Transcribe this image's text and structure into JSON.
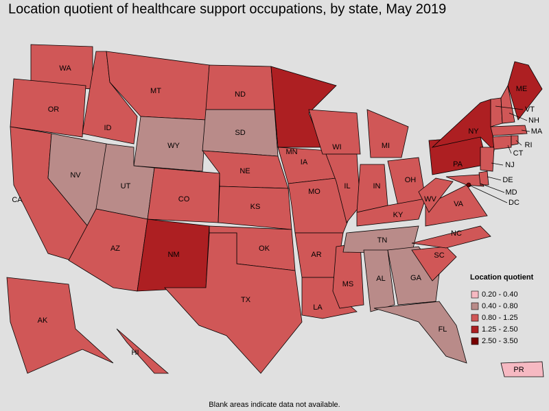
{
  "title": "Location quotient of healthcare support occupations, by state, May 2019",
  "footnote": "Blank areas indicate data not available.",
  "legend": {
    "title": "Location quotient",
    "entries": [
      {
        "label": "0.20 - 0.40",
        "color": "#f6b9c2"
      },
      {
        "label": "0.40 - 0.80",
        "color": "#b98b89"
      },
      {
        "label": "0.80 - 1.25",
        "color": "#d05757"
      },
      {
        "label": "1.25 - 2.50",
        "color": "#ad1f22"
      },
      {
        "label": "2.50 - 3.50",
        "color": "#780000"
      }
    ]
  },
  "states": [
    {
      "label": "WA",
      "color": "#d05757"
    },
    {
      "label": "OR",
      "color": "#d05757"
    },
    {
      "label": "CA",
      "color": "#d05757"
    },
    {
      "label": "NV",
      "color": "#b98b89"
    },
    {
      "label": "ID",
      "color": "#d05757"
    },
    {
      "label": "MT",
      "color": "#d05757"
    },
    {
      "label": "WY",
      "color": "#b98b89"
    },
    {
      "label": "UT",
      "color": "#b98b89"
    },
    {
      "label": "CO",
      "color": "#d05757"
    },
    {
      "label": "AZ",
      "color": "#d05757"
    },
    {
      "label": "NM",
      "color": "#ad1f22"
    },
    {
      "label": "ND",
      "color": "#d05757"
    },
    {
      "label": "SD",
      "color": "#b98b89"
    },
    {
      "label": "NE",
      "color": "#d05757"
    },
    {
      "label": "KS",
      "color": "#d05757"
    },
    {
      "label": "OK",
      "color": "#d05757"
    },
    {
      "label": "TX",
      "color": "#d05757"
    },
    {
      "label": "MN",
      "color": "#ad1f22"
    },
    {
      "label": "IA",
      "color": "#d05757"
    },
    {
      "label": "MO",
      "color": "#d05757"
    },
    {
      "label": "AR",
      "color": "#d05757"
    },
    {
      "label": "LA",
      "color": "#d05757"
    },
    {
      "label": "MS",
      "color": "#d05757"
    },
    {
      "label": "WI",
      "color": "#d05757"
    },
    {
      "label": "IL",
      "color": "#d05757"
    },
    {
      "label": "MI",
      "color": "#d05757"
    },
    {
      "label": "IN",
      "color": "#d05757"
    },
    {
      "label": "OH",
      "color": "#d05757"
    },
    {
      "label": "KY",
      "color": "#d05757"
    },
    {
      "label": "TN",
      "color": "#b98b89"
    },
    {
      "label": "AL",
      "color": "#b98b89"
    },
    {
      "label": "GA",
      "color": "#b98b89"
    },
    {
      "label": "FL",
      "color": "#b98b89"
    },
    {
      "label": "SC",
      "color": "#d05757"
    },
    {
      "label": "NC",
      "color": "#d05757"
    },
    {
      "label": "VA",
      "color": "#d05757"
    },
    {
      "label": "WV",
      "color": "#d05757"
    },
    {
      "label": "PA",
      "color": "#ad1f22"
    },
    {
      "label": "NY",
      "color": "#ad1f22"
    },
    {
      "label": "MD",
      "color": "#d05757"
    },
    {
      "label": "DE",
      "color": "#d05757"
    },
    {
      "label": "DC",
      "color": "#780000"
    },
    {
      "label": "NJ",
      "color": "#d05757"
    },
    {
      "label": "CT",
      "color": "#d05757"
    },
    {
      "label": "RI",
      "color": "#d05757"
    },
    {
      "label": "MA",
      "color": "#d05757"
    },
    {
      "label": "VT",
      "color": "#d05757"
    },
    {
      "label": "NH",
      "color": "#d05757"
    },
    {
      "label": "ME",
      "color": "#ad1f22"
    },
    {
      "label": "AK",
      "color": "#d05757"
    },
    {
      "label": "HI",
      "color": "#d05757"
    },
    {
      "label": "PR",
      "color": "#f6b9c2"
    }
  ]
}
